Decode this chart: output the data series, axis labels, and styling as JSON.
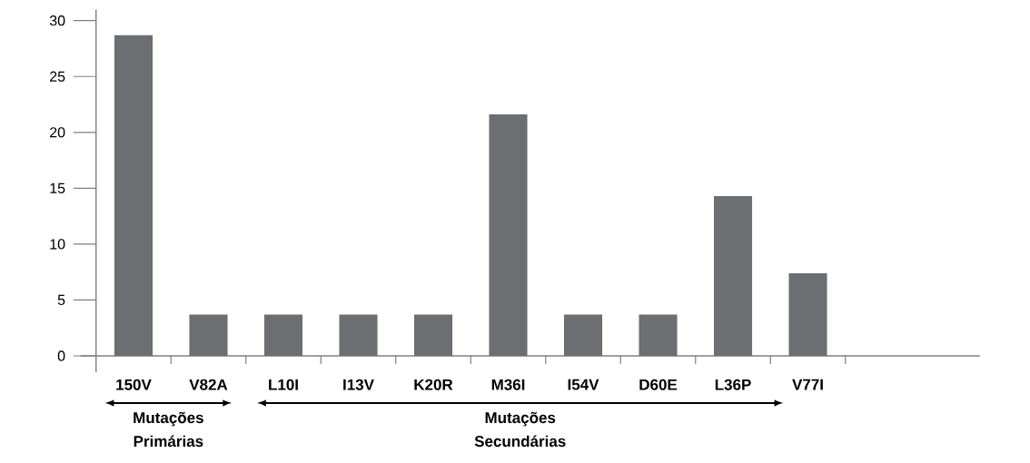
{
  "chart_data": {
    "type": "bar",
    "categories": [
      "150V",
      "V82A",
      "L10I",
      "I13V",
      "K20R",
      "M36I",
      "I54V",
      "D60E",
      "L36P",
      "V77I"
    ],
    "values": [
      28.7,
      3.7,
      3.7,
      3.7,
      3.7,
      21.6,
      3.7,
      3.7,
      14.3,
      7.4
    ],
    "color": "#6d6e71",
    "ylim": [
      0,
      31
    ],
    "yticks": [
      0,
      5,
      10,
      15,
      20,
      25,
      30
    ],
    "annotations": [
      "Mutações Primárias",
      "Mutações Secundárias"
    ]
  }
}
